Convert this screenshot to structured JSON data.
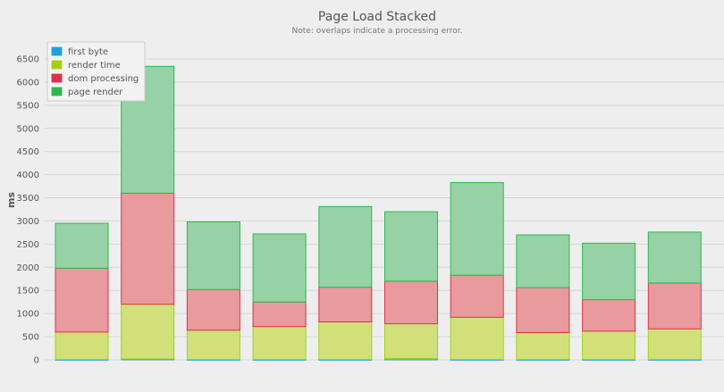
{
  "chart_data": {
    "type": "bar",
    "stacked": true,
    "title": "Page Load Stacked",
    "subtitle": "Note: overlaps indicate a processing error.",
    "xlabel": "",
    "ylabel": "ms",
    "ylim": [
      0,
      6500
    ],
    "yticks": [
      0,
      500,
      1000,
      1500,
      2000,
      2500,
      3000,
      3500,
      4000,
      4500,
      5000,
      5500,
      6000,
      6500
    ],
    "grid": true,
    "legend_position": "top-left",
    "categories": [
      "",
      "",
      "",
      "",
      "",
      "",
      "",
      "",
      "",
      ""
    ],
    "series": [
      {
        "name": "first byte",
        "color": "#1ba1e2",
        "fill": "#7fc8ea",
        "values": [
          10,
          20,
          10,
          10,
          10,
          30,
          10,
          10,
          10,
          10
        ]
      },
      {
        "name": "render time",
        "color": "#a4d017",
        "fill": "#d2e07a",
        "values": [
          590,
          1180,
          630,
          710,
          810,
          750,
          910,
          580,
          610,
          660
        ]
      },
      {
        "name": "dom processing",
        "color": "#e0304e",
        "fill": "#e89a9c",
        "values": [
          1380,
          2400,
          880,
          530,
          750,
          920,
          910,
          970,
          680,
          990
        ]
      },
      {
        "name": "page render",
        "color": "#2db84d",
        "fill": "#96d2a6",
        "values": [
          970,
          2740,
          1460,
          1470,
          1740,
          1500,
          2000,
          1140,
          1220,
          1100
        ]
      }
    ]
  }
}
